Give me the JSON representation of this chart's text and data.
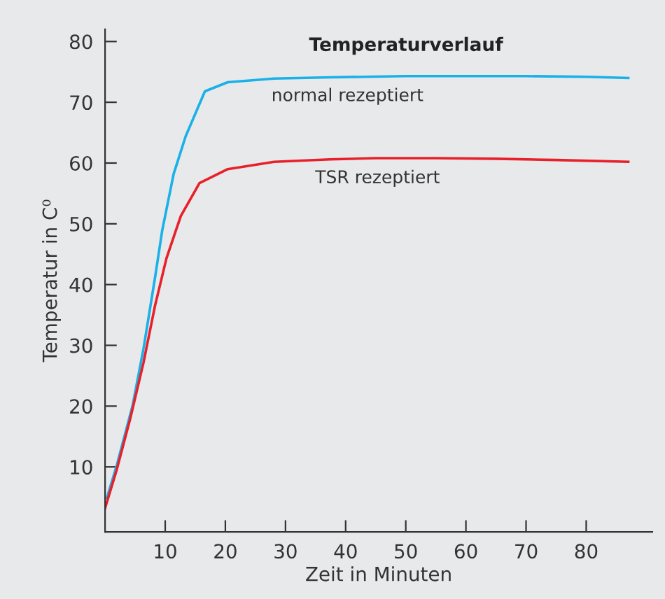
{
  "chart_data": {
    "type": "line",
    "title": "Temperaturverlauf",
    "xlabel": "Zeit in Minuten",
    "ylabel": "Temperatur in C⁰",
    "xlim": [
      0,
      91
    ],
    "xticks": [
      10,
      20,
      30,
      40,
      50,
      60,
      70,
      80
    ],
    "ylim": [
      -0.7,
      82
    ],
    "yticks": [
      10,
      20,
      30,
      40,
      50,
      60,
      70,
      80
    ],
    "grid": false,
    "legend": false,
    "marker": "none",
    "line_style": "solid",
    "series": [
      {
        "name": "normal rezeptiert",
        "color": "#1ab0e8",
        "x": [
          0.3,
          1.9,
          4.6,
          6.4,
          8.3,
          9.5,
          11.4,
          13.4,
          16.6,
          20.4,
          28.1,
          37.4,
          50,
          60,
          70,
          80,
          87
        ],
        "values": [
          4.9,
          10.1,
          20.2,
          29.5,
          41.1,
          48.9,
          58.2,
          64.4,
          71.8,
          73.3,
          73.9,
          74.1,
          74.3,
          74.3,
          74.3,
          74.2,
          74.0
        ]
      },
      {
        "name": "TSR rezeptiert",
        "color": "#e8202a",
        "x": [
          0,
          1.9,
          4.2,
          6.4,
          8.3,
          10.2,
          12.6,
          15.7,
          20.4,
          28.1,
          37.4,
          45,
          55,
          65,
          75,
          87
        ],
        "values": [
          3.2,
          9.4,
          18,
          27.2,
          36.5,
          44.3,
          51.3,
          56.7,
          59,
          60.2,
          60.6,
          60.8,
          60.8,
          60.7,
          60.5,
          60.2
        ]
      }
    ]
  }
}
